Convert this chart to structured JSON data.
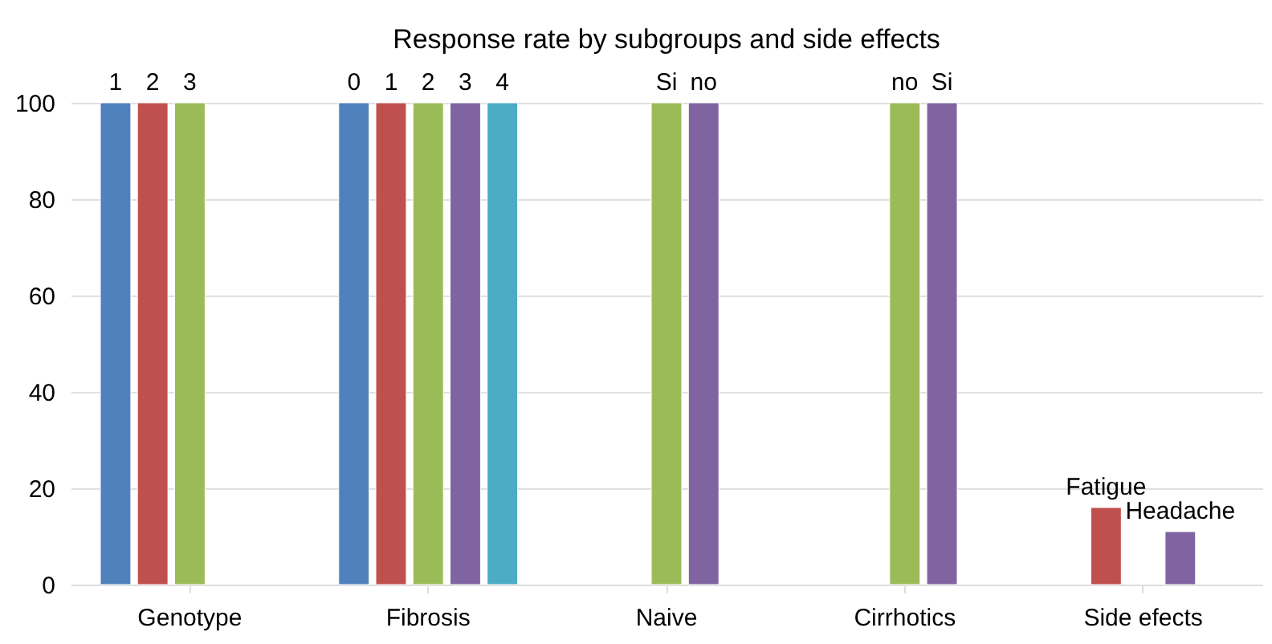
{
  "chart_data": {
    "type": "bar",
    "title": "Response rate by subgroups and side effects",
    "categories": [
      "Genotype",
      "Fibrosis",
      "Naive",
      "Cirrhotics",
      "Side efects"
    ],
    "series": [
      {
        "color": "#4f81bd",
        "values": [
          100,
          100,
          null,
          null,
          null
        ]
      },
      {
        "color": "#c0504d",
        "values": [
          100,
          100,
          null,
          null,
          16
        ]
      },
      {
        "color": "#9bbb59",
        "values": [
          100,
          100,
          100,
          100,
          null
        ]
      },
      {
        "color": "#8064a2",
        "values": [
          null,
          100,
          100,
          100,
          11
        ]
      },
      {
        "color": "#4bacc6",
        "values": [
          null,
          100,
          null,
          null,
          null
        ]
      }
    ],
    "annotations": [
      {
        "text": "1",
        "x": "Genotype",
        "y": 100
      },
      {
        "text": "2",
        "x": "Genotype",
        "y": 100
      },
      {
        "text": "3",
        "x": "Genotype",
        "y": 100
      },
      {
        "text": "0",
        "x": "Fibrosis",
        "y": 100
      },
      {
        "text": "1",
        "x": "Fibrosis",
        "y": 100
      },
      {
        "text": "2",
        "x": "Fibrosis",
        "y": 100
      },
      {
        "text": "3",
        "x": "Fibrosis",
        "y": 100
      },
      {
        "text": "4",
        "x": "Fibrosis",
        "y": 100
      },
      {
        "text": "Si",
        "x": "Naive",
        "y": 100
      },
      {
        "text": "no",
        "x": "Naive",
        "y": 100
      },
      {
        "text": "no",
        "x": "Cirrhotics",
        "y": 100
      },
      {
        "text": "Si",
        "x": "Cirrhotics",
        "y": 100
      },
      "Fatigue",
      "Headache"
    ],
    "ylim": [
      0,
      100
    ],
    "yticks": [
      0,
      20,
      40,
      60,
      80,
      100
    ],
    "grid": "y",
    "legend": false
  }
}
